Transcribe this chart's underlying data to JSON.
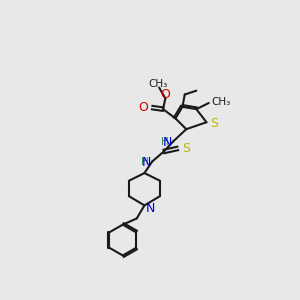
{
  "bg_color": "#e8e8e8",
  "bond_color": "#1a1a1a",
  "bond_width": 1.5,
  "atom_colors": {
    "S": "#b8b800",
    "S2": "#b8b800",
    "O": "#cc0000",
    "N": "#0000cc",
    "H": "#2e8b57",
    "C": "#1a1a1a"
  },
  "font_size_atom": 9,
  "font_size_sub": 7.5
}
